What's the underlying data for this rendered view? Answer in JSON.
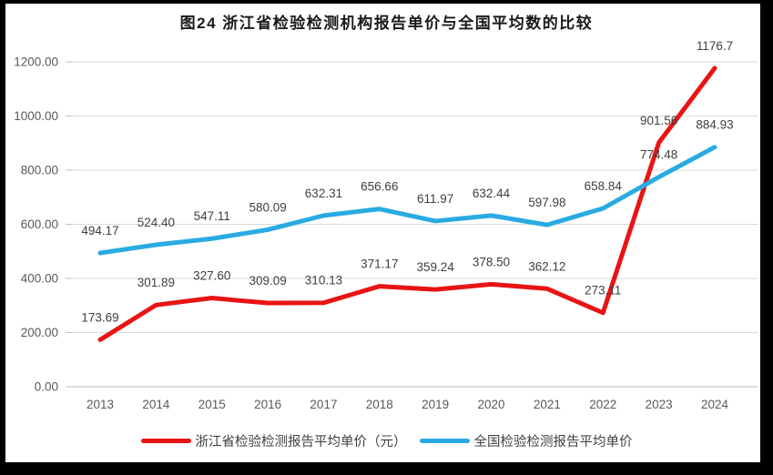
{
  "window": {
    "border_color": "#000000",
    "panel_background": "#ffffff"
  },
  "chart_data": {
    "type": "line",
    "title": "图24  浙江省检验检测机构报告单价与全国平均数的比较",
    "categories": [
      "2013",
      "2014",
      "2015",
      "2016",
      "2017",
      "2018",
      "2019",
      "2020",
      "2021",
      "2022",
      "2023",
      "2024"
    ],
    "series": [
      {
        "name": "浙江省检验检测报告平均单价（元）",
        "color": "#e81414",
        "values": [
          173.69,
          301.89,
          327.6,
          309.09,
          310.13,
          371.17,
          359.24,
          378.5,
          362.12,
          273.11,
          901.56,
          1176.7
        ],
        "labels": [
          "173.69",
          "301.89",
          "327.60",
          "309.09",
          "310.13",
          "371.17",
          "359.24",
          "378.50",
          "362.12",
          "273.11",
          "901.56",
          "1176.7"
        ]
      },
      {
        "name": "全国检验检测报告平均单价",
        "color": "#29abe2",
        "values": [
          494.17,
          524.4,
          547.11,
          580.09,
          632.31,
          656.66,
          611.97,
          632.44,
          597.98,
          658.84,
          774.48,
          884.93
        ],
        "labels": [
          "494.17",
          "524.40",
          "547.11",
          "580.09",
          "632.31",
          "656.66",
          "611.97",
          "632.44",
          "597.98",
          "658.84",
          "774.48",
          "884.93"
        ]
      }
    ],
    "ylim": [
      0,
      1200
    ],
    "ytick_step": 200,
    "ytick_labels": [
      "0.00",
      "200.00",
      "400.00",
      "600.00",
      "800.00",
      "1000.00",
      "1200.00"
    ],
    "grid": true,
    "legend_position": "bottom",
    "colors": {
      "gridline": "#d9d9d9",
      "axis_line": "#bfbfbf",
      "tick_label": "#595959",
      "data_label": "#404040"
    }
  }
}
